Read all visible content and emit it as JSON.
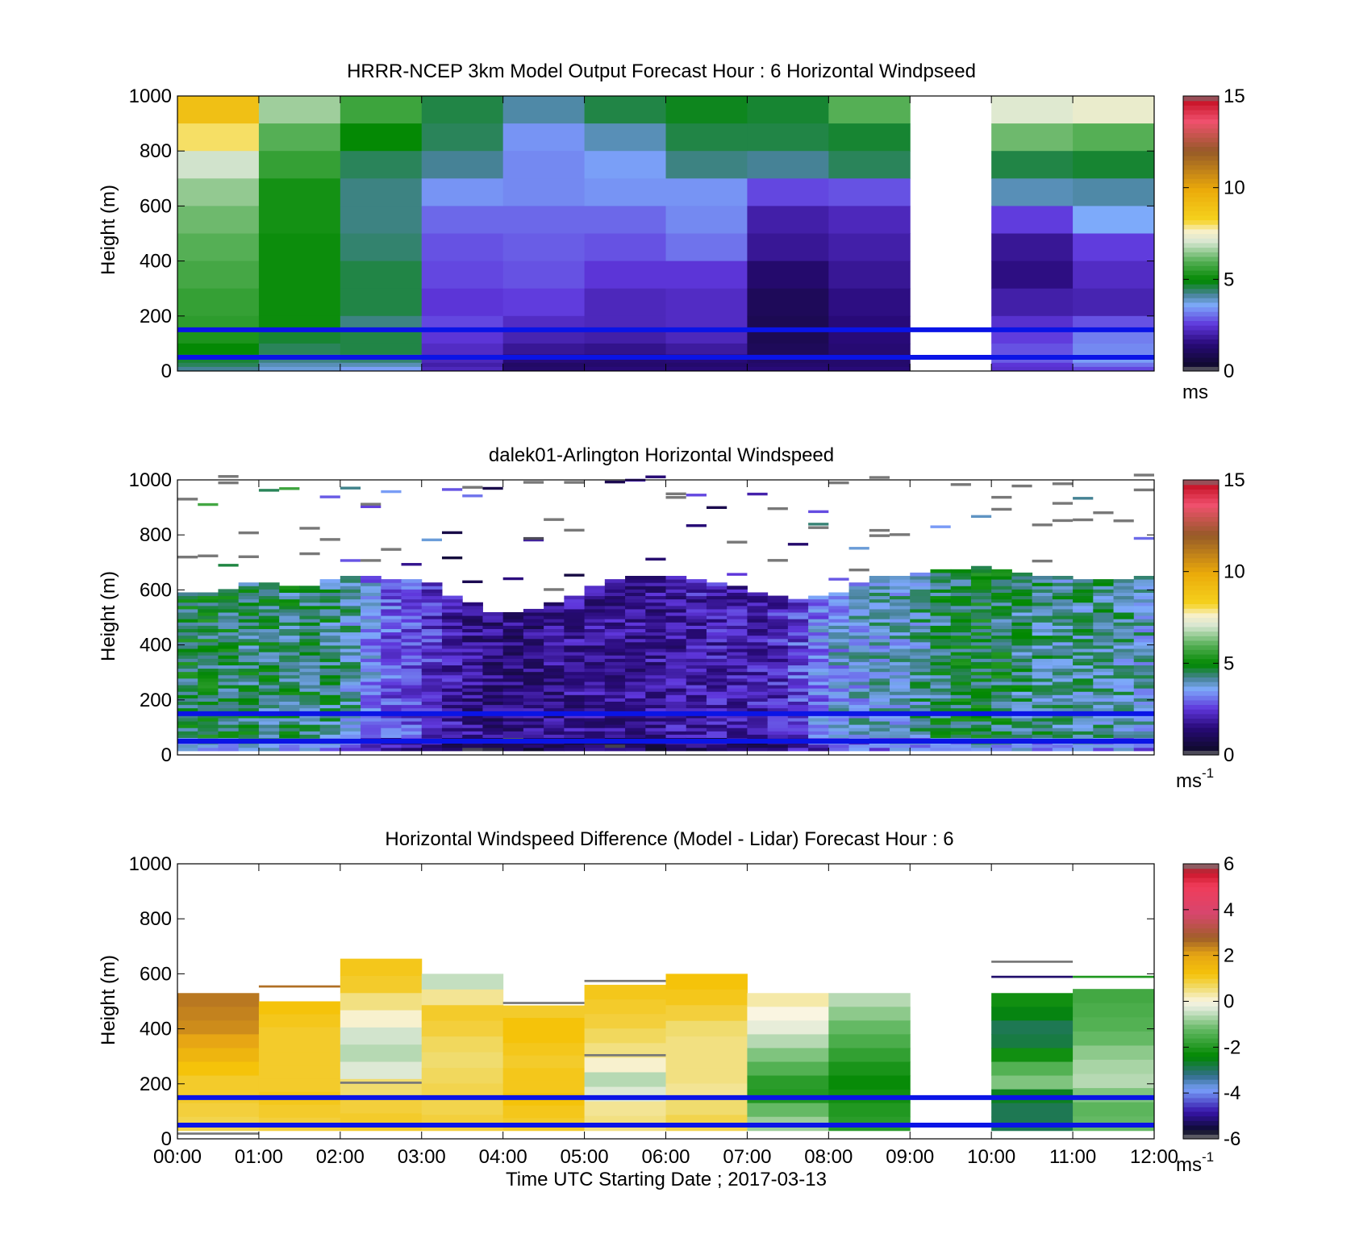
{
  "chart_data": [
    {
      "type": "heatmap",
      "title": "HRRR-NCEP 3km Model Output   Forecast Hour : 6 Horizontal Windpseed",
      "ylabel": "Height (m)",
      "ylim": [
        0,
        1000
      ],
      "yticks": [
        0,
        200,
        400,
        600,
        800,
        1000
      ],
      "xlim": [
        0,
        12
      ],
      "colorbar": {
        "ticks": [
          0,
          5,
          10,
          15
        ],
        "range": [
          0,
          15
        ],
        "units": "ms",
        "units_sup": "",
        "colormap": "windspeed"
      },
      "reference_lines_m": [
        150,
        50
      ],
      "height_levels_m": [
        1000,
        900,
        800,
        700,
        600,
        500,
        400,
        300,
        200,
        150,
        100,
        60,
        30,
        15
      ],
      "columns": [
        {
          "time": 0,
          "values": [
            9.0,
            8.0,
            7.0,
            6.5,
            6.2,
            6.0,
            5.8,
            5.6,
            5.5,
            5.3,
            5.0,
            4.7,
            4.5,
            4.2
          ]
        },
        {
          "time": 1,
          "values": [
            6.6,
            6.0,
            5.6,
            5.2,
            5.2,
            5.1,
            5.1,
            5.1,
            5.1,
            4.7,
            4.5,
            4.3,
            4.0,
            3.8
          ]
        },
        {
          "time": 2,
          "values": [
            5.7,
            5.0,
            4.5,
            4.3,
            4.3,
            4.4,
            4.6,
            4.6,
            4.3,
            4.6,
            4.6,
            4.4,
            4.0,
            3.5
          ]
        },
        {
          "time": 3,
          "values": [
            4.6,
            4.5,
            4.2,
            3.4,
            3.0,
            2.8,
            2.7,
            2.5,
            2.7,
            2.5,
            2.3,
            2.2,
            2.0,
            2.2
          ]
        },
        {
          "time": 4,
          "values": [
            4.1,
            3.4,
            3.3,
            3.3,
            3.0,
            2.9,
            2.8,
            2.6,
            2.3,
            2.1,
            1.8,
            1.5,
            1.2,
            1.3
          ]
        },
        {
          "time": 5,
          "values": [
            4.6,
            4.0,
            3.5,
            3.4,
            3.0,
            2.8,
            2.5,
            2.2,
            2.2,
            2.0,
            1.7,
            1.4,
            1.3,
            1.5
          ]
        },
        {
          "time": 6,
          "values": [
            4.8,
            4.6,
            4.3,
            3.4,
            3.3,
            3.1,
            2.5,
            2.3,
            2.3,
            2.2,
            1.9,
            1.5,
            1.3,
            1.5
          ]
        },
        {
          "time": 7,
          "values": [
            4.7,
            4.6,
            4.2,
            2.7,
            2.0,
            1.8,
            1.3,
            1.0,
            0.9,
            0.9,
            1.0,
            1.2,
            1.3,
            1.5
          ]
        },
        {
          "time": 8,
          "values": [
            6.0,
            4.7,
            4.5,
            2.8,
            2.2,
            2.0,
            1.8,
            1.6,
            1.5,
            1.5,
            1.4,
            1.3,
            1.3,
            1.5
          ]
        },
        {
          "time": 9,
          "values": [
            null,
            null,
            null,
            null,
            null,
            null,
            null,
            null,
            null,
            null,
            null,
            null,
            null,
            null
          ]
        },
        {
          "time": 10,
          "values": [
            7.2,
            6.2,
            4.6,
            4.0,
            2.6,
            1.8,
            1.6,
            2.0,
            2.4,
            2.6,
            2.8,
            2.9,
            2.5,
            2.4
          ]
        },
        {
          "time": 11,
          "values": [
            7.4,
            6.0,
            4.7,
            4.1,
            3.6,
            2.6,
            2.3,
            2.1,
            2.8,
            3.2,
            3.3,
            3.5,
            3.1,
            2.7
          ]
        }
      ]
    },
    {
      "type": "heatmap",
      "title": "dalek01-Arlington  Horizontal Windspeed",
      "ylabel": "Height (m)",
      "ylim": [
        0,
        1000
      ],
      "yticks": [
        0,
        200,
        400,
        600,
        800,
        1000
      ],
      "xlim": [
        0,
        12
      ],
      "colorbar": {
        "ticks": [
          0,
          5,
          10,
          15
        ],
        "range": [
          0,
          15
        ],
        "units": "ms",
        "units_sup": "-1",
        "colormap": "windspeed"
      },
      "reference_lines_m": [
        150,
        50
      ],
      "approx_top_of_data_m": [
        [
          0.0,
          585
        ],
        [
          0.5,
          590
        ],
        [
          1.0,
          625
        ],
        [
          1.5,
          600
        ],
        [
          2.0,
          650
        ],
        [
          2.5,
          640
        ],
        [
          3.0,
          635
        ],
        [
          3.5,
          560
        ],
        [
          4.0,
          500
        ],
        [
          4.5,
          530
        ],
        [
          5.0,
          595
        ],
        [
          5.5,
          640
        ],
        [
          6.0,
          650
        ],
        [
          6.5,
          630
        ],
        [
          7.0,
          600
        ],
        [
          7.5,
          560
        ],
        [
          8.0,
          570
        ],
        [
          8.5,
          640
        ],
        [
          9.0,
          650
        ],
        [
          9.5,
          670
        ],
        [
          10.0,
          680
        ],
        [
          10.5,
          650
        ],
        [
          11.0,
          640
        ],
        [
          11.5,
          635
        ],
        [
          11.85,
          640
        ]
      ],
      "approx_mean_speed_ms": [
        [
          0.0,
          4.6
        ],
        [
          0.5,
          4.7
        ],
        [
          1.0,
          4.4
        ],
        [
          1.5,
          4.5
        ],
        [
          2.0,
          4.3
        ],
        [
          2.5,
          3.0
        ],
        [
          3.0,
          2.6
        ],
        [
          3.5,
          1.8
        ],
        [
          4.0,
          1.5
        ],
        [
          4.5,
          1.6
        ],
        [
          5.0,
          1.9
        ],
        [
          5.5,
          1.7
        ],
        [
          6.0,
          1.9
        ],
        [
          6.5,
          2.1
        ],
        [
          7.0,
          2.0
        ],
        [
          7.5,
          2.4
        ],
        [
          8.0,
          3.5
        ],
        [
          8.5,
          3.8
        ],
        [
          9.0,
          3.9
        ],
        [
          9.5,
          4.6
        ],
        [
          10.0,
          4.7
        ],
        [
          10.5,
          4.3
        ],
        [
          11.0,
          4.1
        ],
        [
          11.5,
          4.2
        ],
        [
          11.85,
          3.9
        ]
      ]
    },
    {
      "type": "heatmap",
      "title": "Horizontal Windspeed Difference (Model - Lidar) Forecast Hour : 6",
      "ylabel": "Height (m)",
      "xlabel": "Time UTC  Starting Date ; 2017-03-13",
      "ylim": [
        0,
        1000
      ],
      "yticks": [
        0,
        200,
        400,
        600,
        800,
        1000
      ],
      "xlim": [
        0,
        12
      ],
      "xticklabels": [
        "00:00",
        "01:00",
        "02:00",
        "03:00",
        "04:00",
        "05:00",
        "06:00",
        "07:00",
        "08:00",
        "09:00",
        "10:00",
        "11:00",
        "12:00"
      ],
      "colorbar": {
        "ticks": [
          -6,
          -4,
          -2,
          0,
          2,
          4,
          6
        ],
        "range": [
          -6,
          6
        ],
        "units": "ms",
        "units_sup": "-1",
        "colormap": "difference"
      },
      "reference_lines_m": [
        150,
        50
      ],
      "columns": [
        {
          "time": 0,
          "top_m": 530,
          "values": [
            2.5,
            2.4,
            2.3,
            2.0,
            1.6,
            1.2,
            1.0,
            1.0,
            0.9,
            0.8
          ]
        },
        {
          "time": 1,
          "top_m": 500,
          "values": [
            1.2,
            1.1,
            1.0,
            1.0,
            1.0,
            1.0,
            1.0,
            1.1,
            1.0,
            0.9
          ]
        },
        {
          "time": 2,
          "top_m": 655,
          "values": [
            1.1,
            1.0,
            0.5,
            0.1,
            -0.4,
            -0.6,
            -0.3,
            0.6,
            0.9,
            1.0
          ]
        },
        {
          "time": 3,
          "top_m": 600,
          "values": [
            -0.5,
            0.4,
            1.0,
            0.9,
            0.7,
            0.6,
            0.7,
            0.8,
            0.8,
            0.9
          ]
        },
        {
          "time": 4,
          "top_m": 485,
          "values": [
            1.0,
            1.2,
            1.2,
            1.1,
            1.0,
            1.1,
            1.1,
            1.2,
            1.1,
            1.0
          ]
        },
        {
          "time": 5,
          "top_m": 560,
          "values": [
            1.1,
            1.0,
            0.9,
            0.7,
            0.5,
            0.1,
            -0.6,
            -0.3,
            0.4,
            0.5
          ]
        },
        {
          "time": 6,
          "top_m": 600,
          "values": [
            1.2,
            1.1,
            0.9,
            0.6,
            0.5,
            0.5,
            0.5,
            0.4,
            0.6,
            0.8
          ]
        },
        {
          "time": 7,
          "top_m": 530,
          "values": [
            0.3,
            0.0,
            -0.2,
            -0.6,
            -1.0,
            -1.4,
            -1.9,
            -2.0,
            -1.2,
            -0.8
          ]
        },
        {
          "time": 8,
          "top_m": 530,
          "values": [
            -0.6,
            -0.9,
            -1.2,
            -1.5,
            -1.8,
            -2.1,
            -2.3,
            -2.2,
            -2.0,
            -1.9
          ]
        },
        {
          "time": 9,
          "top_m": null,
          "values": []
        },
        {
          "time": 10,
          "top_m": 530,
          "values": [
            -2.2,
            -2.5,
            -2.9,
            -2.8,
            -2.2,
            -1.4,
            -1.0,
            -2.6,
            -2.9,
            -2.9
          ]
        },
        {
          "time": 11,
          "top_m": 545,
          "values": [
            -1.6,
            -1.5,
            -1.4,
            -1.2,
            -0.9,
            -0.7,
            -0.6,
            -1.0,
            -1.3,
            -1.2
          ]
        }
      ],
      "extra_segments": [
        {
          "t0": 0.0,
          "t1": 1.0,
          "h": 15,
          "value": 7
        },
        {
          "t0": 1.0,
          "t1": 2.0,
          "h": 550,
          "value": 2.6
        },
        {
          "t0": 4.0,
          "t1": 5.0,
          "h": 490,
          "value": -6
        },
        {
          "t0": 5.0,
          "t1": 6.0,
          "h": 570,
          "value": -6
        },
        {
          "t0": 5.0,
          "t1": 6.0,
          "h": 300,
          "value": 7
        },
        {
          "t0": 2.0,
          "t1": 3.0,
          "h": 200,
          "value": 7
        },
        {
          "t0": 10.0,
          "t1": 11.0,
          "h": 640,
          "value": 7
        },
        {
          "t0": 10.0,
          "t1": 11.0,
          "h": 585,
          "value": -5.2
        },
        {
          "t0": 11.0,
          "t1": 12.0,
          "h": 585,
          "value": -2
        }
      ]
    }
  ]
}
